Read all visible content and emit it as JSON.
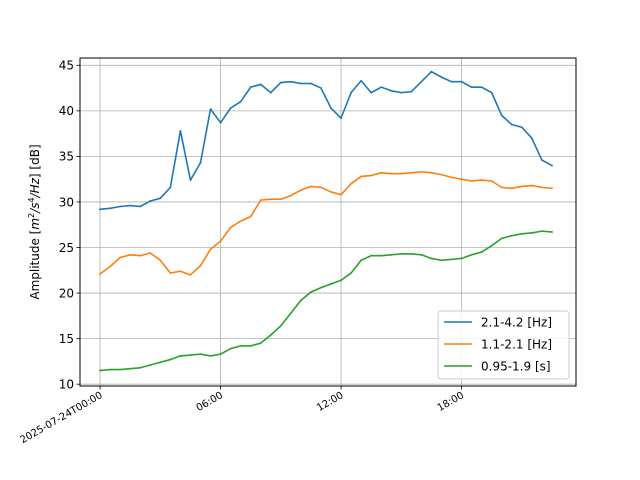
{
  "chart_data": {
    "type": "line",
    "title": "",
    "xlabel": "",
    "ylabel": "Amplitude [m²/s⁴/Hz] [dB]",
    "ylabel_parts": {
      "prefix": "Amplitude [",
      "m": "m",
      "m_exp": "2",
      "s": "/s",
      "s_exp": "4",
      "hz": "/Hz",
      "suffix": "] [dB]"
    },
    "x_unit": "hours",
    "xlim": [
      -1.0,
      23.7
    ],
    "ylim": [
      9.8,
      45.8
    ],
    "grid": true,
    "legend_position": "lower right",
    "x_ticks": [
      {
        "value": 0,
        "label": "2025-07-24T00:00"
      },
      {
        "value": 6,
        "label": "06:00"
      },
      {
        "value": 12,
        "label": "12:00"
      },
      {
        "value": 18,
        "label": "18:00"
      }
    ],
    "y_ticks": [
      10,
      15,
      20,
      25,
      30,
      35,
      40,
      45
    ],
    "x": [
      0,
      0.5,
      1,
      1.5,
      2,
      2.5,
      3,
      3.5,
      4,
      4.5,
      5,
      5.5,
      6,
      6.5,
      7,
      7.5,
      8,
      8.5,
      9,
      9.5,
      10,
      10.5,
      11,
      11.5,
      12,
      12.5,
      13,
      13.5,
      14,
      14.5,
      15,
      15.5,
      16,
      16.5,
      17,
      17.5,
      18,
      18.5,
      19,
      19.5,
      20,
      20.5,
      21,
      21.5,
      22,
      22.5
    ],
    "series": [
      {
        "name": "2.1-4.2 [Hz]",
        "color": "#1f77b4",
        "values": [
          29.2,
          29.3,
          29.5,
          29.6,
          29.5,
          30.1,
          30.4,
          31.6,
          37.8,
          32.4,
          34.3,
          40.2,
          38.7,
          40.3,
          41.0,
          42.6,
          42.9,
          42.0,
          43.1,
          43.2,
          43.0,
          43.0,
          42.5,
          40.3,
          39.2,
          42.0,
          43.3,
          42.0,
          42.6,
          42.2,
          42.0,
          42.1,
          43.2,
          44.3,
          43.7,
          43.2,
          43.2,
          42.6,
          42.6,
          42.0,
          39.5,
          38.5,
          38.2,
          37.0,
          34.6,
          34.0
        ]
      },
      {
        "name": "1.1-2.1 [Hz]",
        "color": "#ff7f0e",
        "values": [
          22.1,
          22.9,
          23.9,
          24.2,
          24.1,
          24.4,
          23.6,
          22.2,
          22.4,
          22.0,
          23.0,
          24.8,
          25.7,
          27.2,
          27.9,
          28.4,
          30.2,
          30.3,
          30.3,
          30.7,
          31.3,
          31.7,
          31.6,
          31.1,
          30.8,
          32.0,
          32.8,
          32.9,
          33.2,
          33.1,
          33.1,
          33.2,
          33.3,
          33.2,
          33.0,
          32.7,
          32.5,
          32.3,
          32.4,
          32.3,
          31.6,
          31.5,
          31.7,
          31.8,
          31.6,
          31.5
        ]
      },
      {
        "name": "0.95-1.9 [s]",
        "color": "#2ca02c",
        "values": [
          11.5,
          11.6,
          11.6,
          11.7,
          11.8,
          12.1,
          12.4,
          12.7,
          13.1,
          13.2,
          13.3,
          13.1,
          13.3,
          13.9,
          14.2,
          14.2,
          14.5,
          15.4,
          16.4,
          17.8,
          19.2,
          20.1,
          20.6,
          21.0,
          21.4,
          22.2,
          23.6,
          24.1,
          24.1,
          24.2,
          24.3,
          24.3,
          24.2,
          23.8,
          23.6,
          23.7,
          23.8,
          24.2,
          24.5,
          25.2,
          26.0,
          26.3,
          26.5,
          26.6,
          26.8,
          26.7
        ]
      }
    ]
  }
}
